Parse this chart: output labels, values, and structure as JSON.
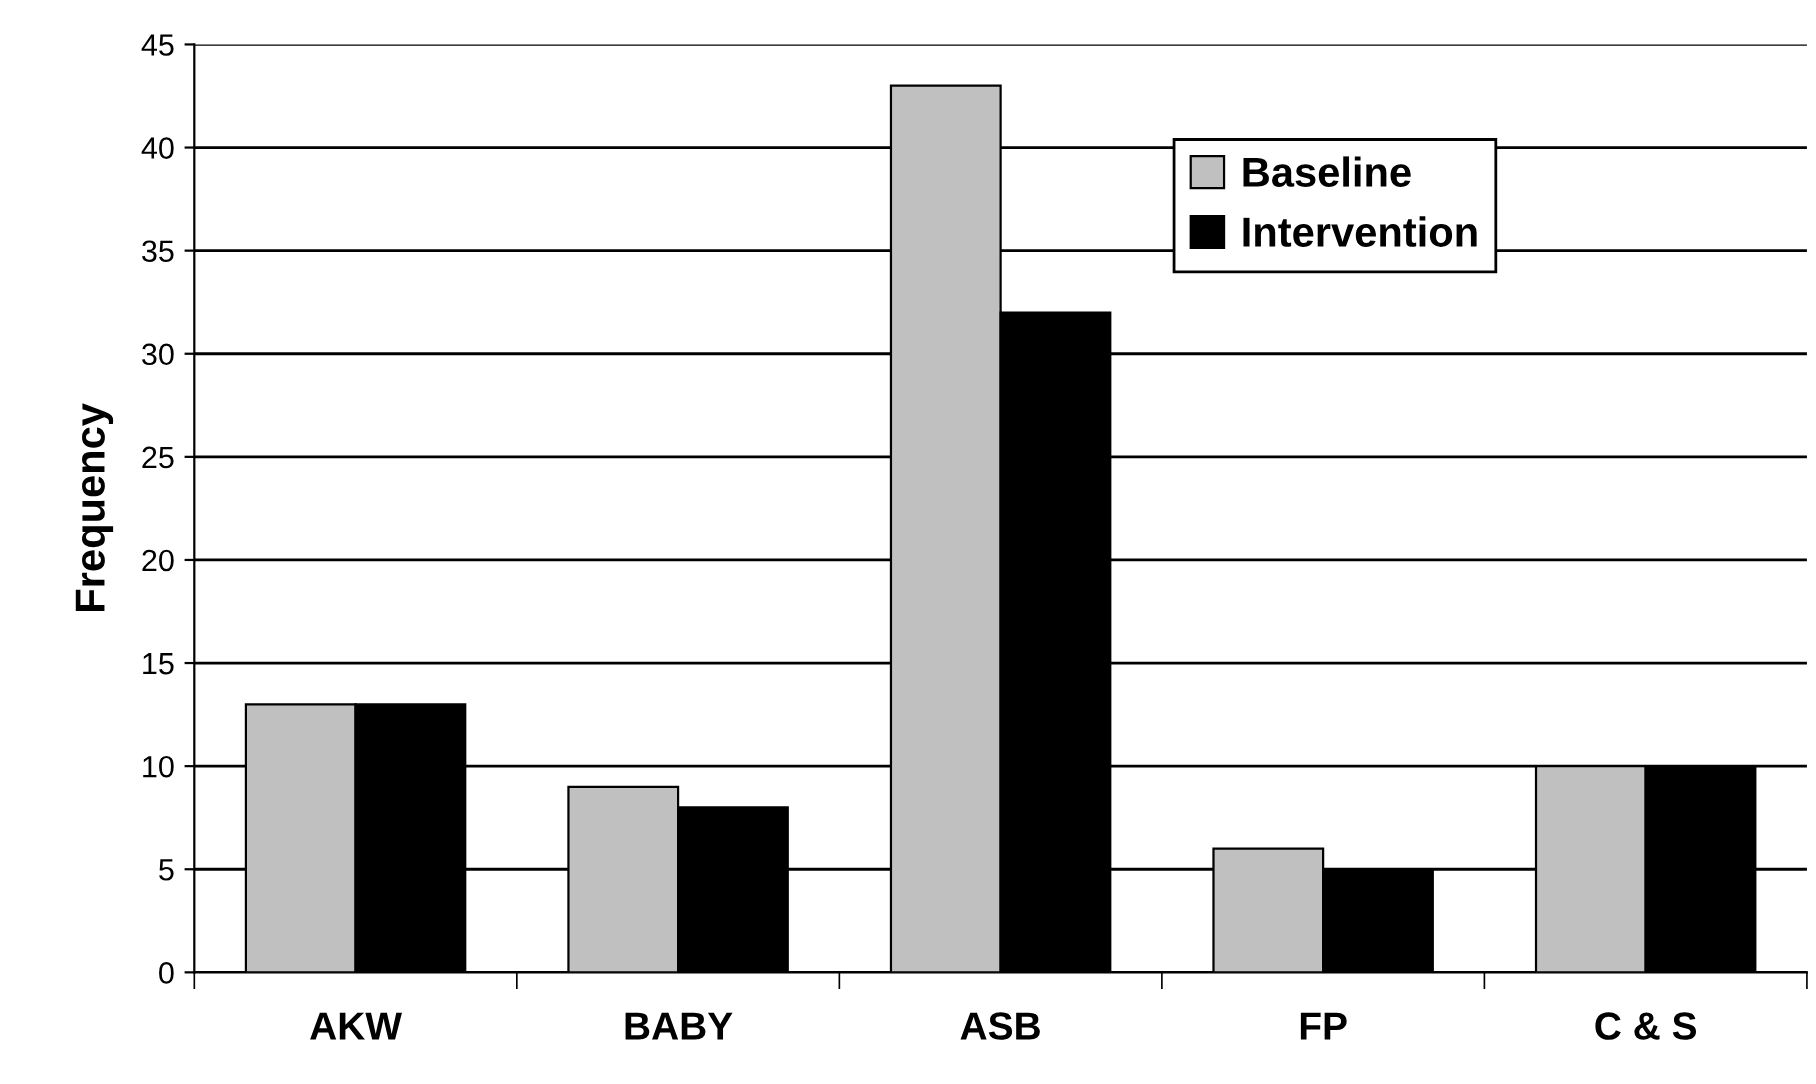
{
  "chart_data": {
    "type": "bar",
    "ylabel": "Frequency",
    "categories": [
      "AKW",
      "BABY",
      "ASB",
      "FP",
      "C & S"
    ],
    "series": [
      {
        "name": "Baseline",
        "color": "#c0c0c0",
        "values": [
          13,
          9,
          43,
          6,
          10
        ]
      },
      {
        "name": "Intervention",
        "color": "#000000",
        "values": [
          13,
          8,
          32,
          5,
          10
        ]
      }
    ],
    "ylim": [
      0,
      45
    ],
    "yticks": [
      0,
      5,
      10,
      15,
      20,
      25,
      30,
      35,
      40,
      45
    ],
    "grid": "y",
    "legend": "top right"
  }
}
